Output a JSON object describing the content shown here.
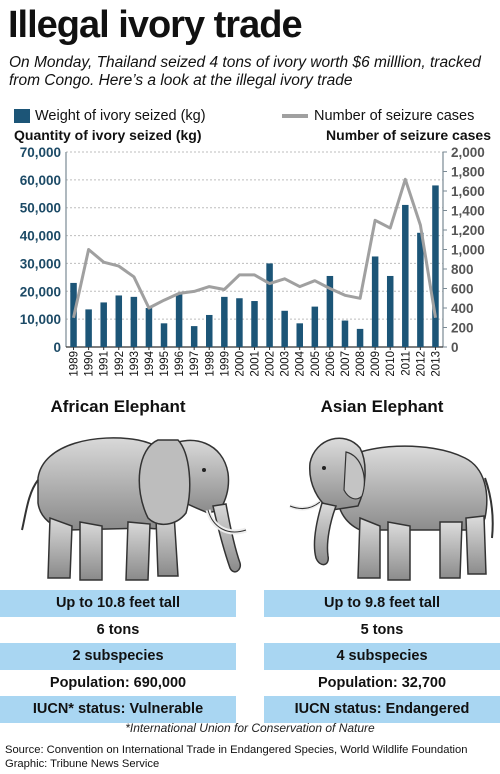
{
  "header": {
    "title": "Illegal ivory trade",
    "subtitle": "On Monday, Thailand seized 4 tons of ivory worth $6 milllion, tracked from Congo. Here’s a look at the illegal ivory trade"
  },
  "chart_data": {
    "type": "bar",
    "categories": [
      "1989",
      "1990",
      "1991",
      "1992",
      "1993",
      "1994",
      "1995",
      "1996",
      "1997",
      "1998",
      "1999",
      "2000",
      "2001",
      "2002",
      "2003",
      "2004",
      "2005",
      "2006",
      "2007",
      "2008",
      "2009",
      "2010",
      "2011",
      "2012",
      "2013"
    ],
    "series": [
      {
        "name": "Weight of ivory seized (kg)",
        "type": "bar",
        "axis": "left",
        "values": [
          23000,
          13500,
          16000,
          18500,
          18000,
          14000,
          8500,
          19000,
          7500,
          11500,
          18000,
          17500,
          16500,
          30000,
          13000,
          8500,
          14500,
          25500,
          9500,
          6500,
          32500,
          25500,
          51000,
          41000,
          58000
        ]
      },
      {
        "name": "Number of seizure cases",
        "type": "line",
        "axis": "right",
        "values": [
          300,
          1000,
          870,
          830,
          720,
          400,
          480,
          550,
          570,
          620,
          590,
          740,
          740,
          650,
          700,
          620,
          680,
          600,
          530,
          500,
          1300,
          1220,
          1720,
          1250,
          300
        ]
      }
    ],
    "ylabel": "Quantity of ivory seized (kg)",
    "y2label": "Number of seizure cases",
    "ylim": [
      0,
      70000
    ],
    "y2lim": [
      0,
      2000
    ],
    "yticks": [
      "0",
      "10,000",
      "20,000",
      "30,000",
      "40,000",
      "50,000",
      "60,000",
      "70,000"
    ],
    "y2ticks": [
      "0",
      "200",
      "400",
      "600",
      "800",
      "1,000",
      "1,200",
      "1,400",
      "1,600",
      "1,800",
      "2,000"
    ],
    "grid": true,
    "legend_position": "top",
    "colors": {
      "bar": "#1c5577",
      "line": "#a0a0a0",
      "grid": "#bdbdbd",
      "axis": "#7a8a94"
    }
  },
  "elephants": {
    "african": {
      "name": "African Elephant",
      "stats": [
        "Up to 10.8 feet tall",
        "6 tons",
        "2 subspecies",
        "Population: 690,000",
        "IUCN* status: Vulnerable"
      ]
    },
    "asian": {
      "name": "Asian Elephant",
      "stats": [
        "Up to 9.8 feet tall",
        "5 tons",
        "4 subspecies",
        "Population: 32,700",
        "IUCN status: Endangered"
      ]
    },
    "icons": [
      "african-elephant-illustration",
      "asian-elephant-illustration"
    ],
    "colors": {
      "row_blue": "#a9d6f2",
      "row_white": "#ffffff"
    }
  },
  "footnote": "*International Union for Conservation of Nature",
  "source": {
    "line1": "Source: Convention on International Trade in Endangered Species, World Wildlife Foundation",
    "line2": "Graphic: Tribune News Service"
  }
}
